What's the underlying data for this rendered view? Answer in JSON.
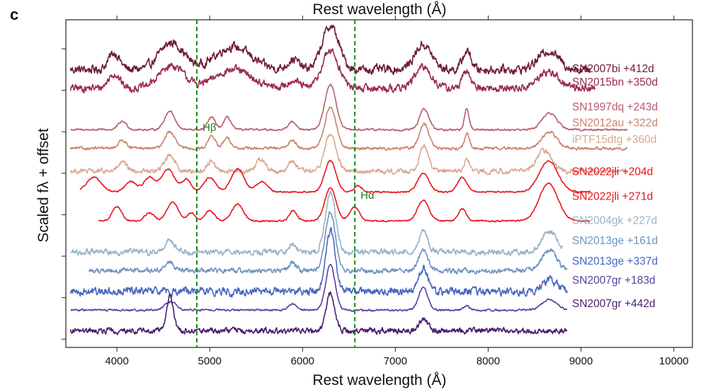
{
  "panel_label": "c",
  "chart_data": {
    "type": "line",
    "title": "",
    "top_axis_label": "Rest wavelength (Å)",
    "xlabel": "Rest wavelength (Å)",
    "ylabel": "Scaled fλ + offset",
    "xlim": [
      3450,
      10200
    ],
    "xticks": [
      4000,
      5000,
      6000,
      7000,
      8000,
      9000,
      10000
    ],
    "xtick_labels": [
      "4000",
      "5000",
      "6000",
      "7000",
      "8000",
      "9000",
      "10000"
    ],
    "ylim": [
      -0.2,
      7.7
    ],
    "yticks": [
      0,
      1,
      2,
      3,
      4,
      5,
      6,
      7
    ],
    "grid": false,
    "reference_lines": [
      {
        "name": "Hβ",
        "wavelength": 4861,
        "color": "#1a8a1a",
        "style": "dashed"
      },
      {
        "name": "Hα",
        "wavelength": 6563,
        "color": "#1a8a1a",
        "style": "dashed"
      }
    ],
    "series": [
      {
        "name": "SN2007bi +412d",
        "color": "#6e1b3c",
        "offset": 6.5,
        "wmin": 3500,
        "wmax": 9100,
        "noise": 0.09,
        "features": [
          [
            3970,
            0.4,
            60
          ],
          [
            4590,
            0.65,
            130
          ],
          [
            5250,
            0.55,
            190
          ],
          [
            5900,
            0.25,
            60
          ],
          [
            6300,
            1.05,
            90
          ],
          [
            7300,
            0.6,
            90
          ],
          [
            7770,
            0.45,
            45
          ],
          [
            8650,
            0.45,
            110
          ]
        ]
      },
      {
        "name": "SN2015bn +350d",
        "color": "#9b2a55",
        "offset": 6.05,
        "wmin": 3500,
        "wmax": 9150,
        "noise": 0.08,
        "features": [
          [
            3970,
            0.35,
            60
          ],
          [
            4590,
            0.55,
            130
          ],
          [
            5250,
            0.45,
            190
          ],
          [
            5900,
            0.2,
            60
          ],
          [
            6300,
            0.9,
            90
          ],
          [
            7300,
            0.5,
            90
          ],
          [
            7770,
            0.4,
            45
          ],
          [
            8650,
            0.4,
            110
          ]
        ]
      },
      {
        "name": "SN1997dq +243d",
        "color": "#b85c6e",
        "offset": 5.05,
        "wmin": 3500,
        "wmax": 9500,
        "noise": 0.02,
        "features": [
          [
            4060,
            0.2,
            45
          ],
          [
            4570,
            0.45,
            55
          ],
          [
            5020,
            0.3,
            40
          ],
          [
            5190,
            0.3,
            40
          ],
          [
            5890,
            0.2,
            40
          ],
          [
            6300,
            1.1,
            60
          ],
          [
            7310,
            0.5,
            50
          ],
          [
            7770,
            0.5,
            25
          ],
          [
            8660,
            0.4,
            80
          ]
        ]
      },
      {
        "name": "SN2012au +322d",
        "color": "#c8836b",
        "offset": 4.6,
        "wmin": 3500,
        "wmax": 9500,
        "noise": 0.03,
        "features": [
          [
            4060,
            0.2,
            45
          ],
          [
            4570,
            0.4,
            55
          ],
          [
            5020,
            0.3,
            40
          ],
          [
            5190,
            0.25,
            40
          ],
          [
            5890,
            0.2,
            40
          ],
          [
            6300,
            1.0,
            60
          ],
          [
            7310,
            0.6,
            50
          ],
          [
            7770,
            0.35,
            25
          ],
          [
            8660,
            0.4,
            80
          ]
        ]
      },
      {
        "name": "iPTF15dtg +360d",
        "color": "#d9a98f",
        "offset": 4.05,
        "wmin": 3500,
        "wmax": 9500,
        "noise": 0.05,
        "features": [
          [
            4060,
            0.2,
            45
          ],
          [
            4570,
            0.4,
            55
          ],
          [
            5020,
            0.25,
            40
          ],
          [
            5550,
            0.3,
            50
          ],
          [
            5890,
            0.25,
            40
          ],
          [
            6300,
            0.9,
            60
          ],
          [
            7310,
            0.6,
            50
          ],
          [
            7770,
            0.3,
            25
          ],
          [
            8600,
            0.5,
            80
          ]
        ]
      },
      {
        "name": "SN2022jli +204d",
        "color": "#e8141e",
        "offset": 3.55,
        "wmin": 3600,
        "wmax": 9100,
        "noise": 0.015,
        "features": [
          [
            3750,
            0.35,
            80
          ],
          [
            4150,
            0.25,
            60
          ],
          [
            4350,
            0.35,
            60
          ],
          [
            4550,
            0.55,
            70
          ],
          [
            4750,
            0.3,
            50
          ],
          [
            5000,
            0.35,
            60
          ],
          [
            5300,
            0.55,
            70
          ],
          [
            5560,
            0.25,
            60
          ],
          [
            6300,
            0.75,
            60
          ],
          [
            6600,
            0.15,
            40
          ],
          [
            7300,
            0.45,
            60
          ],
          [
            7720,
            0.35,
            50
          ],
          [
            8650,
            0.75,
            100
          ]
        ]
      },
      {
        "name": "SN2022jli +271d",
        "color": "#e8141e",
        "offset": 2.85,
        "wmin": 3800,
        "wmax": 9100,
        "noise": 0.015,
        "features": [
          [
            4000,
            0.35,
            50
          ],
          [
            4350,
            0.2,
            50
          ],
          [
            4600,
            0.45,
            60
          ],
          [
            4800,
            0.2,
            40
          ],
          [
            5000,
            0.25,
            50
          ],
          [
            5300,
            0.4,
            60
          ],
          [
            5900,
            0.25,
            40
          ],
          [
            6300,
            0.8,
            60
          ],
          [
            6560,
            0.35,
            50
          ],
          [
            7300,
            0.5,
            60
          ],
          [
            7720,
            0.3,
            40
          ],
          [
            8650,
            0.9,
            100
          ]
        ]
      },
      {
        "name": "SN2004gk +227d",
        "color": "#9ab4c8",
        "offset": 2.1,
        "wmin": 3500,
        "wmax": 8800,
        "noise": 0.06,
        "features": [
          [
            4570,
            0.3,
            50
          ],
          [
            5890,
            0.2,
            40
          ],
          [
            6300,
            1.4,
            55
          ],
          [
            7300,
            0.5,
            50
          ],
          [
            8660,
            0.5,
            80
          ]
        ]
      },
      {
        "name": "SN2013ge +161d",
        "color": "#6e93c0",
        "offset": 1.65,
        "wmin": 3700,
        "wmax": 8850,
        "noise": 0.05,
        "features": [
          [
            4570,
            0.2,
            50
          ],
          [
            5890,
            0.2,
            40
          ],
          [
            6300,
            1.4,
            55
          ],
          [
            7300,
            0.5,
            50
          ],
          [
            8660,
            0.5,
            80
          ]
        ]
      },
      {
        "name": "SN2013ge +337d",
        "color": "#4a66c0",
        "offset": 1.15,
        "wmin": 3500,
        "wmax": 8850,
        "noise": 0.08,
        "features": [
          [
            6300,
            1.45,
            50
          ],
          [
            7300,
            0.55,
            50
          ],
          [
            8660,
            0.3,
            80
          ]
        ]
      },
      {
        "name": "SN2007gr +183d",
        "color": "#5a3ea0",
        "offset": 0.7,
        "wmin": 3500,
        "wmax": 8850,
        "noise": 0.02,
        "features": [
          [
            4580,
            0.2,
            60
          ],
          [
            5890,
            0.15,
            40
          ],
          [
            6300,
            1.1,
            50
          ],
          [
            7300,
            0.55,
            50
          ],
          [
            7770,
            0.1,
            30
          ],
          [
            8660,
            0.25,
            80
          ]
        ]
      },
      {
        "name": "SN2007gr +442d",
        "color": "#4b1d6e",
        "offset": 0.2,
        "wmin": 3500,
        "wmax": 8850,
        "noise": 0.06,
        "features": [
          [
            4570,
            0.85,
            35
          ],
          [
            6300,
            0.9,
            45
          ],
          [
            7300,
            0.3,
            45
          ]
        ]
      }
    ],
    "series_labels": [
      {
        "text": "SN2007bi +412d",
        "color": "#6e1b3c",
        "y_value": 6.52
      },
      {
        "text": "SN2015bn +350d",
        "color": "#9b2a55",
        "y_value": 6.2
      },
      {
        "text": "SN1997dq +243d",
        "color": "#b85c6e",
        "y_value": 5.6
      },
      {
        "text": "SN2012au +322d",
        "color": "#c8836b",
        "y_value": 5.22
      },
      {
        "text": "iPTF15dtg +360d",
        "color": "#d9a98f",
        "y_value": 4.82
      },
      {
        "text": "SN2022jli +204d",
        "color": "#e8141e",
        "y_value": 4.04
      },
      {
        "text": "SN2022jli +271d",
        "color": "#e8141e",
        "y_value": 3.44
      },
      {
        "text": "SN2004gk +227d",
        "color": "#9ab4c8",
        "y_value": 2.86
      },
      {
        "text": "SN2013ge +161d",
        "color": "#6e93c0",
        "y_value": 2.38
      },
      {
        "text": "SN2013ge +337d",
        "color": "#4a66c0",
        "y_value": 1.88
      },
      {
        "text": "SN2007gr +183d",
        "color": "#5a3ea0",
        "y_value": 1.42
      },
      {
        "text": "SN2007gr +442d",
        "color": "#4b1d6e",
        "y_value": 0.86
      }
    ],
    "line_labels": [
      {
        "text": "Hβ",
        "wavelength": 4861,
        "y_value": 5.02
      },
      {
        "text": "Hα",
        "wavelength": 6563,
        "y_value": 3.38
      }
    ]
  }
}
